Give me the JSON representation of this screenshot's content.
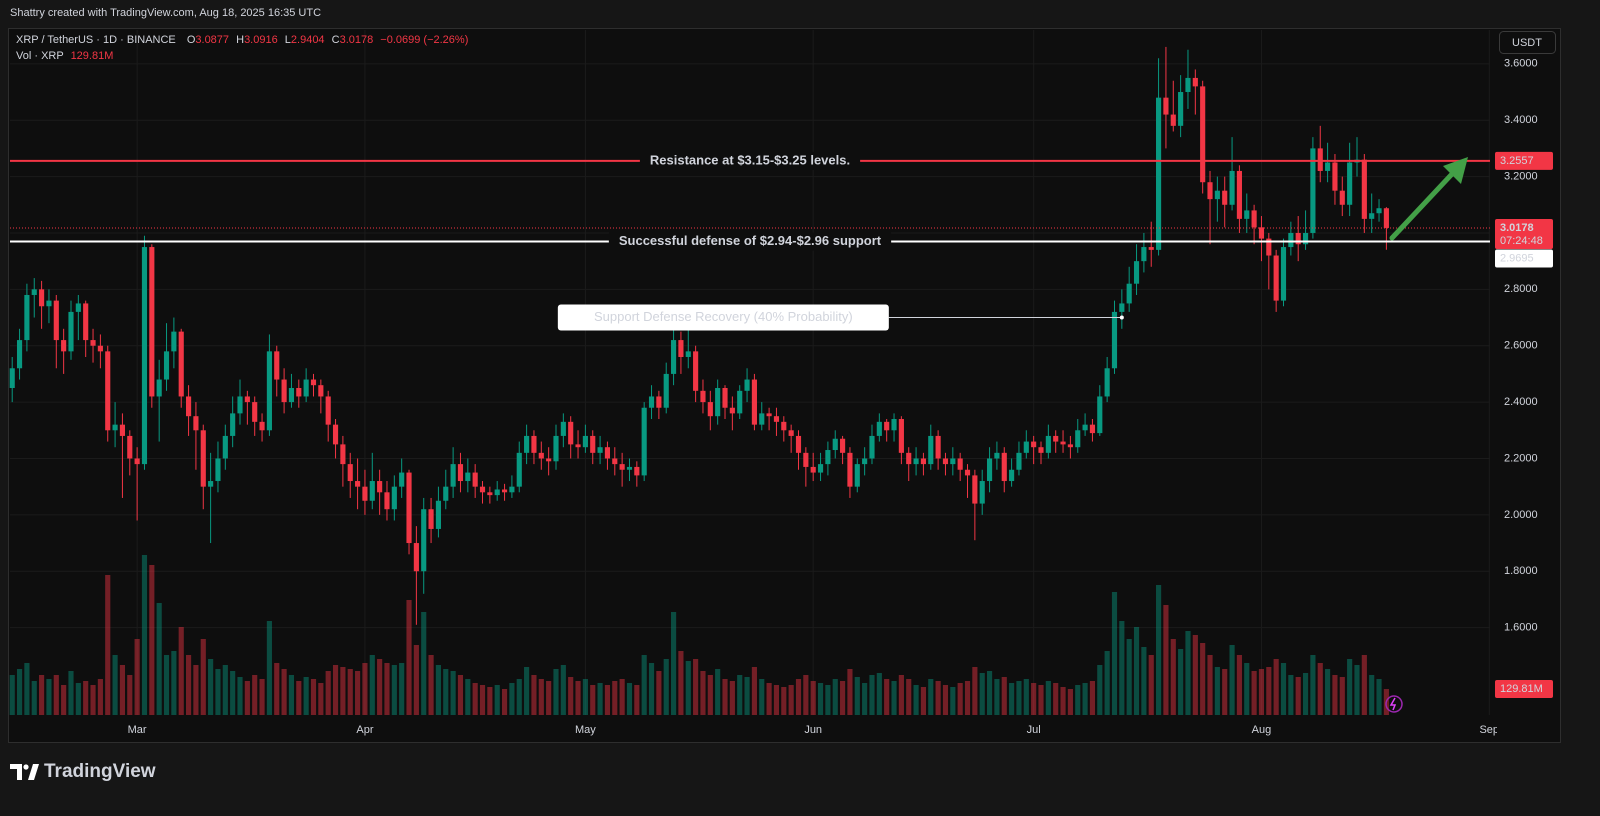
{
  "header": {
    "credit": "Shattry created with TradingView.com, Aug 18, 2025 16:35 UTC",
    "brand": "TradingView"
  },
  "chart_data": {
    "type": "candlestick",
    "symbol": "XRP / TetherUS · 1D · BINANCE",
    "ohlc_labels": [
      "O",
      "H",
      "L",
      "C"
    ],
    "change": "−0.0699 (−2.26%)",
    "currency": "USDT",
    "countdown": "07:24:48",
    "up_color": "#089981",
    "down_color": "#f23645",
    "grid": true,
    "xlim": [
      -0.3,
      201.1
    ],
    "xticks": [
      {
        "value": 17,
        "label": "Mar"
      },
      {
        "value": 48,
        "label": "Apr"
      },
      {
        "value": 78,
        "label": "May"
      },
      {
        "value": 109,
        "label": "Jun"
      },
      {
        "value": 139,
        "label": "Jul"
      },
      {
        "value": 170,
        "label": "Aug"
      },
      {
        "value": 201,
        "label": "Sep"
      }
    ],
    "ylim": [
      1.29,
      3.72
    ],
    "yticks": [
      {
        "value": 1.6,
        "label": "1.6000"
      },
      {
        "value": 1.8,
        "label": "1.8000"
      },
      {
        "value": 2.0,
        "label": "2.0000"
      },
      {
        "value": 2.2,
        "label": "2.2000"
      },
      {
        "value": 2.4,
        "label": "2.4000"
      },
      {
        "value": 2.6,
        "label": "2.6000"
      },
      {
        "value": 2.8,
        "label": "2.8000"
      },
      {
        "value": 3.0,
        "label": "3.0000"
      },
      {
        "value": 3.2,
        "label": "3.2000"
      },
      {
        "value": 3.4,
        "label": "3.4000"
      },
      {
        "value": 3.6,
        "label": "3.6000"
      }
    ],
    "levels": [
      {
        "value": 3.2557,
        "label": "Resistance at $3.15-$3.25 levels.",
        "color": "#f23645"
      },
      {
        "value": 2.9695,
        "label": "Successful defense of $2.94-$2.96 support",
        "color": "#ffffff"
      }
    ],
    "annotation": {
      "text": "Support Defense Recovery (40% Probability)",
      "x": 151,
      "y": 2.7
    },
    "candles": [
      [
        2.45,
        2.56,
        2.4,
        2.52
      ],
      [
        2.52,
        2.66,
        2.48,
        2.62
      ],
      [
        2.62,
        2.82,
        2.58,
        2.78
      ],
      [
        2.78,
        2.84,
        2.7,
        2.8
      ],
      [
        2.8,
        2.83,
        2.66,
        2.74
      ],
      [
        2.74,
        2.8,
        2.68,
        2.76
      ],
      [
        2.76,
        2.78,
        2.52,
        2.62
      ],
      [
        2.62,
        2.66,
        2.5,
        2.58
      ],
      [
        2.58,
        2.76,
        2.55,
        2.72
      ],
      [
        2.72,
        2.78,
        2.62,
        2.75
      ],
      [
        2.75,
        2.76,
        2.56,
        2.62
      ],
      [
        2.62,
        2.66,
        2.54,
        2.6
      ],
      [
        2.6,
        2.64,
        2.52,
        2.58
      ],
      [
        2.58,
        2.6,
        2.26,
        2.3
      ],
      [
        2.3,
        2.4,
        2.24,
        2.32
      ],
      [
        2.32,
        2.36,
        2.06,
        2.28
      ],
      [
        2.28,
        2.3,
        2.14,
        2.2
      ],
      [
        2.2,
        2.24,
        1.98,
        2.18
      ],
      [
        2.18,
        2.99,
        2.16,
        2.95
      ],
      [
        2.95,
        2.96,
        2.38,
        2.42
      ],
      [
        2.42,
        2.55,
        2.26,
        2.48
      ],
      [
        2.48,
        2.68,
        2.44,
        2.58
      ],
      [
        2.58,
        2.7,
        2.52,
        2.65
      ],
      [
        2.65,
        2.66,
        2.38,
        2.42
      ],
      [
        2.42,
        2.46,
        2.28,
        2.35
      ],
      [
        2.35,
        2.4,
        2.16,
        2.3
      ],
      [
        2.3,
        2.32,
        2.02,
        2.1
      ],
      [
        2.1,
        2.22,
        1.9,
        2.12
      ],
      [
        2.12,
        2.26,
        2.08,
        2.2
      ],
      [
        2.2,
        2.32,
        2.16,
        2.28
      ],
      [
        2.28,
        2.42,
        2.24,
        2.36
      ],
      [
        2.36,
        2.48,
        2.32,
        2.42
      ],
      [
        2.42,
        2.44,
        2.32,
        2.4
      ],
      [
        2.4,
        2.42,
        2.28,
        2.33
      ],
      [
        2.33,
        2.36,
        2.26,
        2.3
      ],
      [
        2.3,
        2.64,
        2.28,
        2.58
      ],
      [
        2.58,
        2.6,
        2.42,
        2.48
      ],
      [
        2.48,
        2.52,
        2.36,
        2.4
      ],
      [
        2.4,
        2.5,
        2.38,
        2.45
      ],
      [
        2.45,
        2.48,
        2.38,
        2.42
      ],
      [
        2.42,
        2.52,
        2.4,
        2.48
      ],
      [
        2.48,
        2.5,
        2.42,
        2.46
      ],
      [
        2.46,
        2.48,
        2.36,
        2.42
      ],
      [
        2.42,
        2.44,
        2.26,
        2.32
      ],
      [
        2.32,
        2.34,
        2.2,
        2.25
      ],
      [
        2.25,
        2.28,
        2.1,
        2.18
      ],
      [
        2.18,
        2.22,
        2.06,
        2.12
      ],
      [
        2.12,
        2.2,
        2.02,
        2.1
      ],
      [
        2.1,
        2.16,
        2.0,
        2.05
      ],
      [
        2.05,
        2.22,
        2.02,
        2.12
      ],
      [
        2.12,
        2.16,
        2.0,
        2.08
      ],
      [
        2.08,
        2.12,
        1.98,
        2.02
      ],
      [
        2.02,
        2.14,
        1.98,
        2.1
      ],
      [
        2.1,
        2.2,
        2.06,
        2.15
      ],
      [
        2.15,
        2.16,
        1.86,
        1.9
      ],
      [
        1.9,
        1.96,
        1.61,
        1.8
      ],
      [
        1.8,
        2.06,
        1.72,
        2.02
      ],
      [
        2.02,
        2.06,
        1.9,
        1.95
      ],
      [
        1.95,
        2.1,
        1.92,
        2.05
      ],
      [
        2.05,
        2.16,
        2.02,
        2.1
      ],
      [
        2.1,
        2.24,
        2.06,
        2.18
      ],
      [
        2.18,
        2.22,
        2.08,
        2.12
      ],
      [
        2.12,
        2.2,
        2.08,
        2.15
      ],
      [
        2.15,
        2.18,
        2.06,
        2.1
      ],
      [
        2.1,
        2.12,
        2.04,
        2.08
      ],
      [
        2.08,
        2.1,
        2.04,
        2.07
      ],
      [
        2.07,
        2.12,
        2.05,
        2.09
      ],
      [
        2.09,
        2.11,
        2.05,
        2.08
      ],
      [
        2.08,
        2.14,
        2.06,
        2.1
      ],
      [
        2.1,
        2.26,
        2.08,
        2.22
      ],
      [
        2.22,
        2.32,
        2.18,
        2.28
      ],
      [
        2.28,
        2.3,
        2.18,
        2.22
      ],
      [
        2.22,
        2.26,
        2.16,
        2.2
      ],
      [
        2.2,
        2.24,
        2.14,
        2.19
      ],
      [
        2.19,
        2.32,
        2.16,
        2.28
      ],
      [
        2.28,
        2.36,
        2.24,
        2.33
      ],
      [
        2.33,
        2.35,
        2.2,
        2.25
      ],
      [
        2.25,
        2.3,
        2.2,
        2.24
      ],
      [
        2.24,
        2.32,
        2.22,
        2.28
      ],
      [
        2.28,
        2.3,
        2.18,
        2.22
      ],
      [
        2.22,
        2.28,
        2.18,
        2.24
      ],
      [
        2.24,
        2.26,
        2.16,
        2.2
      ],
      [
        2.2,
        2.24,
        2.14,
        2.18
      ],
      [
        2.18,
        2.22,
        2.1,
        2.16
      ],
      [
        2.16,
        2.2,
        2.12,
        2.17
      ],
      [
        2.17,
        2.19,
        2.1,
        2.14
      ],
      [
        2.14,
        2.4,
        2.12,
        2.38
      ],
      [
        2.38,
        2.46,
        2.34,
        2.42
      ],
      [
        2.42,
        2.44,
        2.34,
        2.38
      ],
      [
        2.38,
        2.54,
        2.36,
        2.5
      ],
      [
        2.5,
        2.66,
        2.46,
        2.62
      ],
      [
        2.62,
        2.65,
        2.5,
        2.56
      ],
      [
        2.56,
        2.66,
        2.52,
        2.58
      ],
      [
        2.58,
        2.6,
        2.4,
        2.44
      ],
      [
        2.44,
        2.48,
        2.36,
        2.4
      ],
      [
        2.4,
        2.44,
        2.3,
        2.35
      ],
      [
        2.35,
        2.48,
        2.32,
        2.45
      ],
      [
        2.45,
        2.46,
        2.34,
        2.38
      ],
      [
        2.38,
        2.42,
        2.3,
        2.36
      ],
      [
        2.36,
        2.46,
        2.34,
        2.44
      ],
      [
        2.44,
        2.52,
        2.4,
        2.48
      ],
      [
        2.48,
        2.5,
        2.3,
        2.32
      ],
      [
        2.32,
        2.4,
        2.3,
        2.36
      ],
      [
        2.36,
        2.38,
        2.3,
        2.35
      ],
      [
        2.35,
        2.38,
        2.28,
        2.33
      ],
      [
        2.33,
        2.35,
        2.26,
        2.3
      ],
      [
        2.3,
        2.32,
        2.22,
        2.28
      ],
      [
        2.28,
        2.3,
        2.16,
        2.22
      ],
      [
        2.22,
        2.24,
        2.1,
        2.17
      ],
      [
        2.17,
        2.22,
        2.12,
        2.15
      ],
      [
        2.15,
        2.22,
        2.12,
        2.18
      ],
      [
        2.18,
        2.26,
        2.14,
        2.23
      ],
      [
        2.23,
        2.3,
        2.2,
        2.27
      ],
      [
        2.27,
        2.28,
        2.18,
        2.22
      ],
      [
        2.22,
        2.24,
        2.06,
        2.1
      ],
      [
        2.1,
        2.2,
        2.08,
        2.18
      ],
      [
        2.18,
        2.24,
        2.14,
        2.2
      ],
      [
        2.2,
        2.32,
        2.18,
        2.28
      ],
      [
        2.28,
        2.36,
        2.26,
        2.33
      ],
      [
        2.33,
        2.34,
        2.26,
        2.3
      ],
      [
        2.3,
        2.36,
        2.26,
        2.34
      ],
      [
        2.34,
        2.35,
        2.18,
        2.22
      ],
      [
        2.22,
        2.24,
        2.12,
        2.18
      ],
      [
        2.18,
        2.24,
        2.14,
        2.2
      ],
      [
        2.2,
        2.22,
        2.14,
        2.18
      ],
      [
        2.18,
        2.32,
        2.16,
        2.28
      ],
      [
        2.28,
        2.3,
        2.16,
        2.2
      ],
      [
        2.2,
        2.22,
        2.14,
        2.18
      ],
      [
        2.18,
        2.24,
        2.14,
        2.2
      ],
      [
        2.2,
        2.22,
        2.12,
        2.16
      ],
      [
        2.16,
        2.18,
        2.06,
        2.14
      ],
      [
        2.14,
        2.16,
        1.91,
        2.04
      ],
      [
        2.04,
        2.16,
        2.0,
        2.12
      ],
      [
        2.12,
        2.24,
        2.08,
        2.2
      ],
      [
        2.2,
        2.26,
        2.16,
        2.22
      ],
      [
        2.22,
        2.24,
        2.08,
        2.12
      ],
      [
        2.12,
        2.2,
        2.1,
        2.16
      ],
      [
        2.16,
        2.26,
        2.14,
        2.22
      ],
      [
        2.22,
        2.3,
        2.2,
        2.26
      ],
      [
        2.26,
        2.28,
        2.18,
        2.24
      ],
      [
        2.24,
        2.26,
        2.18,
        2.22
      ],
      [
        2.22,
        2.32,
        2.2,
        2.28
      ],
      [
        2.28,
        2.3,
        2.22,
        2.26
      ],
      [
        2.26,
        2.3,
        2.22,
        2.25
      ],
      [
        2.25,
        2.28,
        2.2,
        2.24
      ],
      [
        2.24,
        2.34,
        2.22,
        2.3
      ],
      [
        2.3,
        2.36,
        2.28,
        2.32
      ],
      [
        2.32,
        2.34,
        2.26,
        2.29
      ],
      [
        2.29,
        2.46,
        2.28,
        2.42
      ],
      [
        2.42,
        2.56,
        2.4,
        2.52
      ],
      [
        2.52,
        2.76,
        2.5,
        2.72
      ],
      [
        2.72,
        2.8,
        2.66,
        2.75
      ],
      [
        2.75,
        2.88,
        2.72,
        2.82
      ],
      [
        2.82,
        2.96,
        2.78,
        2.9
      ],
      [
        2.9,
        3.0,
        2.86,
        2.95
      ],
      [
        2.95,
        3.04,
        2.88,
        2.94
      ],
      [
        2.94,
        3.62,
        2.92,
        3.48
      ],
      [
        3.48,
        3.66,
        3.3,
        3.42
      ],
      [
        3.42,
        3.54,
        3.36,
        3.38
      ],
      [
        3.38,
        3.56,
        3.34,
        3.5
      ],
      [
        3.5,
        3.65,
        3.44,
        3.55
      ],
      [
        3.55,
        3.58,
        3.42,
        3.52
      ],
      [
        3.52,
        3.54,
        3.14,
        3.18
      ],
      [
        3.18,
        3.22,
        2.96,
        3.12
      ],
      [
        3.12,
        3.2,
        3.04,
        3.15
      ],
      [
        3.15,
        3.2,
        3.02,
        3.1
      ],
      [
        3.1,
        3.34,
        3.08,
        3.22
      ],
      [
        3.22,
        3.24,
        3.0,
        3.05
      ],
      [
        3.05,
        3.14,
        3.0,
        3.08
      ],
      [
        3.08,
        3.1,
        2.96,
        3.02
      ],
      [
        3.02,
        3.06,
        2.9,
        2.98
      ],
      [
        2.98,
        3.0,
        2.8,
        2.92
      ],
      [
        2.92,
        2.94,
        2.72,
        2.76
      ],
      [
        2.76,
        2.98,
        2.74,
        2.95
      ],
      [
        2.95,
        3.04,
        2.92,
        3.0
      ],
      [
        3.0,
        3.06,
        2.9,
        2.96
      ],
      [
        2.96,
        3.08,
        2.94,
        3.0
      ],
      [
        3.0,
        3.34,
        2.98,
        3.3
      ],
      [
        3.3,
        3.38,
        3.18,
        3.22
      ],
      [
        3.22,
        3.32,
        3.18,
        3.25
      ],
      [
        3.25,
        3.28,
        3.1,
        3.15
      ],
      [
        3.15,
        3.2,
        3.06,
        3.1
      ],
      [
        3.1,
        3.32,
        3.06,
        3.25
      ],
      [
        3.25,
        3.34,
        3.2,
        3.26
      ],
      [
        3.26,
        3.28,
        3.0,
        3.05
      ],
      [
        3.05,
        3.14,
        3.0,
        3.07
      ],
      [
        3.07,
        3.12,
        3.04,
        3.0877
      ],
      [
        3.0877,
        3.0916,
        2.9404,
        3.0178
      ]
    ],
    "volume": {
      "name": "Vol · XRP",
      "last_value_label": "129.81M",
      "values": [
        200,
        230,
        260,
        170,
        200,
        180,
        200,
        150,
        220,
        160,
        170,
        150,
        180,
        700,
        300,
        250,
        200,
        380,
        800,
        750,
        560,
        300,
        320,
        440,
        300,
        250,
        380,
        280,
        230,
        250,
        220,
        190,
        170,
        200,
        180,
        470,
        260,
        230,
        200,
        170,
        190,
        180,
        160,
        220,
        250,
        240,
        230,
        220,
        260,
        300,
        280,
        260,
        250,
        260,
        575,
        350,
        515,
        300,
        250,
        230,
        220,
        200,
        180,
        160,
        150,
        140,
        150,
        130,
        160,
        180,
        240,
        200,
        180,
        170,
        230,
        250,
        190,
        170,
        180,
        150,
        160,
        150,
        170,
        180,
        160,
        150,
        300,
        260,
        220,
        280,
        515,
        320,
        270,
        280,
        220,
        200,
        230,
        180,
        170,
        200,
        190,
        240,
        180,
        160,
        150,
        140,
        150,
        180,
        200,
        170,
        160,
        150,
        180,
        170,
        230,
        190,
        160,
        200,
        210,
        180,
        170,
        200,
        180,
        150,
        140,
        180,
        170,
        150,
        140,
        160,
        170,
        240,
        210,
        220,
        180,
        190,
        160,
        170,
        180,
        160,
        150,
        170,
        160,
        140,
        130,
        150,
        160,
        170,
        250,
        320,
        615,
        470,
        380,
        440,
        340,
        300,
        650,
        550,
        380,
        330,
        420,
        400,
        360,
        300,
        240,
        230,
        350,
        300,
        260,
        220,
        230,
        240,
        280,
        260,
        200,
        190,
        210,
        300,
        260,
        230,
        200,
        190,
        280,
        250,
        300,
        200,
        180,
        129.81
      ]
    }
  }
}
